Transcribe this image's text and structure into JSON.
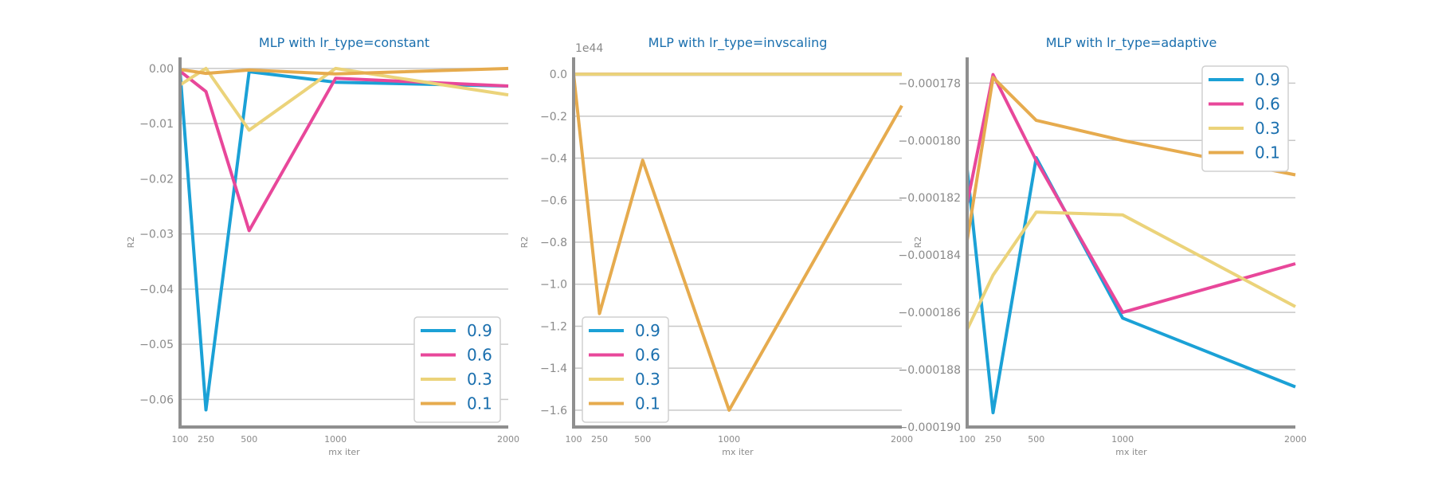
{
  "chart_data": [
    {
      "type": "line",
      "title": "MLP with lr_type=constant",
      "xlabel": "mx iter",
      "ylabel": "R2",
      "offset_text": "",
      "x": [
        100,
        250,
        500,
        1000,
        2000
      ],
      "xticks": [
        100,
        250,
        500,
        1000,
        2000
      ],
      "xlim": [
        100,
        2000
      ],
      "ylim": [
        -0.065,
        0.002
      ],
      "yticks": [
        0.0,
        -0.01,
        -0.02,
        -0.03,
        -0.04,
        -0.05,
        -0.06
      ],
      "ytick_labels": [
        "0.00",
        "−0.01",
        "−0.02",
        "−0.03",
        "−0.04",
        "−0.05",
        "−0.06"
      ],
      "grid": "horizontal",
      "legend_position": "lower-right",
      "series": [
        {
          "name": "0.9",
          "color": "#1ba1d6",
          "values": [
            -0.0005,
            -0.0619,
            -0.0006,
            -0.0025,
            -0.0032
          ]
        },
        {
          "name": "0.6",
          "color": "#e8479a",
          "values": [
            -0.0005,
            -0.0042,
            -0.0294,
            -0.0018,
            -0.0032
          ]
        },
        {
          "name": "0.3",
          "color": "#ebd37a",
          "values": [
            -0.003,
            0.0,
            -0.0112,
            0.0,
            -0.0048
          ]
        },
        {
          "name": "0.1",
          "color": "#e6ab4e",
          "values": [
            -0.0002,
            -0.0009,
            -0.0003,
            -0.001,
            0.0
          ]
        }
      ]
    },
    {
      "type": "line",
      "title": "MLP with lr_type=invscaling",
      "xlabel": "mx iter",
      "ylabel": "R2",
      "offset_text": "1e44",
      "x": [
        100,
        250,
        500,
        1000,
        2000
      ],
      "xticks": [
        100,
        250,
        500,
        1000,
        2000
      ],
      "xlim": [
        100,
        2000
      ],
      "ylim": [
        -1.68,
        0.08
      ],
      "yticks": [
        0.0,
        -0.2,
        -0.4,
        -0.6,
        -0.8,
        -1.0,
        -1.2,
        -1.4,
        -1.6
      ],
      "ytick_labels": [
        "0.0",
        "−0.2",
        "−0.4",
        "−0.6",
        "−0.8",
        "−1.0",
        "−1.2",
        "−1.4",
        "−1.6"
      ],
      "grid": "horizontal",
      "legend_position": "lower-left",
      "series": [
        {
          "name": "0.9",
          "color": "#1ba1d6",
          "values": [
            0.0,
            0.0,
            0.0,
            0.0,
            0.0
          ]
        },
        {
          "name": "0.6",
          "color": "#e8479a",
          "values": [
            0.0,
            0.0,
            0.0,
            0.0,
            0.0
          ]
        },
        {
          "name": "0.3",
          "color": "#ebd37a",
          "values": [
            0.0,
            0.0,
            0.0,
            0.0,
            0.0
          ]
        },
        {
          "name": "0.1",
          "color": "#e6ab4e",
          "values": [
            0.0,
            -1.14,
            -0.41,
            -1.6,
            -0.15
          ]
        }
      ]
    },
    {
      "type": "line",
      "title": "MLP with lr_type=adaptive",
      "xlabel": "mx iter",
      "ylabel": "R2",
      "offset_text": "",
      "x": [
        100,
        250,
        500,
        1000,
        2000
      ],
      "xticks": [
        100,
        250,
        500,
        1000,
        2000
      ],
      "xlim": [
        100,
        2000
      ],
      "ylim": [
        -0.00019,
        -0.0001771
      ],
      "yticks": [
        -0.000178,
        -0.00018,
        -0.000182,
        -0.000184,
        -0.000186,
        -0.000188,
        -0.00019
      ],
      "ytick_labels": [
        "−0.000178",
        "−0.000180",
        "−0.000182",
        "−0.000184",
        "−0.000186",
        "−0.000188",
        "−0.000190"
      ],
      "grid": "horizontal",
      "legend_position": "top-right",
      "series": [
        {
          "name": "0.9",
          "color": "#1ba1d6",
          "values": [
            -0.000181,
            -0.0001895,
            -0.0001806,
            -0.0001862,
            -0.0001886
          ]
        },
        {
          "name": "0.6",
          "color": "#e8479a",
          "values": [
            -0.0001822,
            -0.0001777,
            -0.0001807,
            -0.000186,
            -0.0001843
          ]
        },
        {
          "name": "0.3",
          "color": "#ebd37a",
          "values": [
            -0.0001866,
            -0.0001847,
            -0.0001825,
            -0.0001826,
            -0.0001858
          ]
        },
        {
          "name": "0.1",
          "color": "#e6ab4e",
          "values": [
            -0.0001835,
            -0.0001778,
            -0.0001793,
            -0.00018,
            -0.0001812
          ]
        }
      ]
    }
  ]
}
